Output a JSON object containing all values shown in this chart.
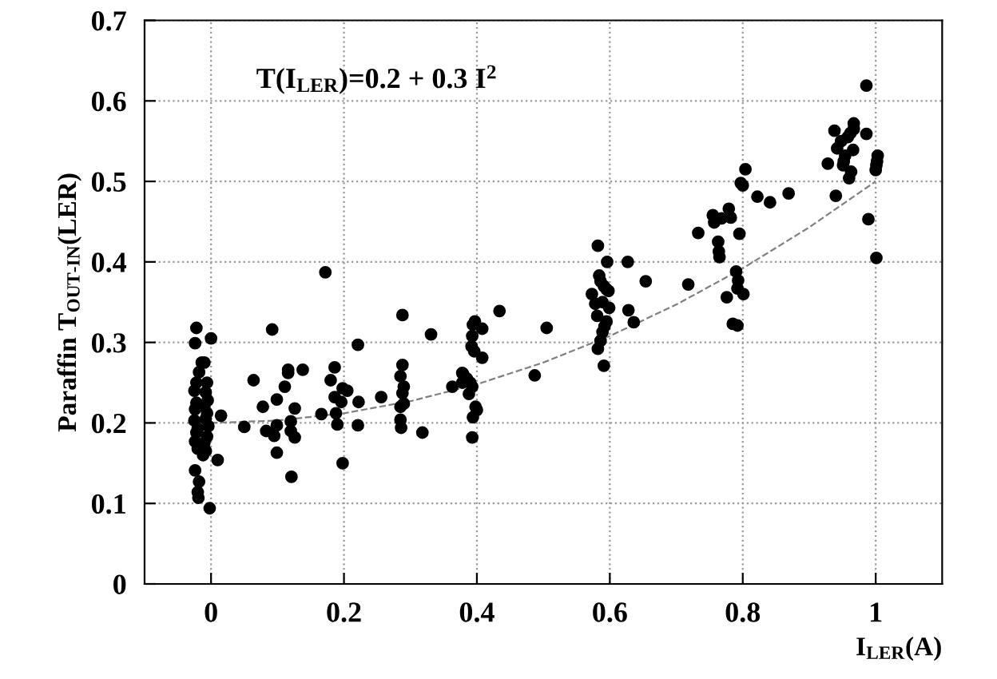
{
  "chart_data": {
    "type": "scatter",
    "xlabel": "I$_{LER}$(A)",
    "ylabel": "Paraffin T$_{OUT-IN}$(LER)",
    "annotations": [
      "T(I$_{LER}$)=0.2 + 0.3 I$^{2}$"
    ],
    "xlim": [
      -0.1,
      1.1
    ],
    "ylim": [
      0,
      0.7
    ],
    "xticks": [
      0,
      0.2,
      0.4,
      0.6,
      0.8,
      1
    ],
    "yticks": [
      0,
      0.1,
      0.2,
      0.3,
      0.4,
      0.5,
      0.6,
      0.7
    ],
    "grid": true,
    "legend": false,
    "marker": "circle",
    "series": [
      {
        "color": "#000000",
        "x": [
          -0.022,
          -0.024,
          0.0,
          -0.014,
          -0.01,
          -0.018,
          -0.025,
          -0.008,
          -0.005,
          -0.022,
          -0.01,
          -0.024,
          -0.006,
          -0.008,
          -0.025,
          -0.004,
          -0.02,
          -0.022,
          -0.006,
          -0.024,
          -0.01,
          -0.02,
          -0.008,
          -0.012,
          0.015,
          0.01,
          -0.024,
          -0.018,
          -0.02,
          -0.019,
          -0.002,
          -0.022,
          -0.006,
          0.05,
          0.064,
          0.078,
          0.083,
          0.092,
          0.099,
          0.099,
          0.095,
          0.099,
          0.111,
          0.116,
          0.116,
          0.126,
          0.12,
          0.12,
          0.126,
          0.121,
          0.138,
          0.172,
          0.166,
          0.186,
          0.18,
          0.186,
          0.198,
          0.205,
          0.196,
          0.188,
          0.19,
          0.198,
          0.221,
          0.222,
          0.221,
          0.256,
          0.288,
          0.288,
          0.285,
          0.29,
          0.288,
          0.29,
          0.285,
          0.285,
          0.286,
          0.318,
          0.331,
          0.363,
          0.378,
          0.378,
          0.379,
          0.385,
          0.39,
          0.393,
          0.388,
          0.398,
          0.4,
          0.394,
          0.393,
          0.393,
          0.392,
          0.396,
          0.397,
          0.394,
          0.408,
          0.408,
          0.434,
          0.487,
          0.505,
          0.582,
          0.596,
          0.584,
          0.586,
          0.591,
          0.595,
          0.598,
          0.573,
          0.578,
          0.589,
          0.599,
          0.581,
          0.595,
          0.592,
          0.589,
          0.586,
          0.582,
          0.591,
          0.627,
          0.654,
          0.628,
          0.636,
          0.718,
          0.733,
          0.755,
          0.757,
          0.768,
          0.782,
          0.779,
          0.763,
          0.764,
          0.765,
          0.795,
          0.79,
          0.793,
          0.792,
          0.801,
          0.776,
          0.785,
          0.792,
          0.804,
          0.797,
          0.8,
          0.822,
          0.841,
          0.869,
          0.986,
          0.938,
          0.967,
          0.967,
          0.962,
          0.958,
          0.948,
          0.942,
          0.966,
          0.954,
          0.952,
          0.951,
          0.928,
          0.986,
          0.963,
          0.96,
          1.003,
          1.002,
          1.001,
          1.0,
          0.94,
          0.989,
          1.001
        ],
        "values": [
          0.318,
          0.299,
          0.305,
          0.275,
          0.275,
          0.263,
          0.24,
          0.238,
          0.228,
          0.225,
          0.22,
          0.217,
          0.212,
          0.205,
          0.203,
          0.196,
          0.193,
          0.188,
          0.183,
          0.177,
          0.175,
          0.168,
          0.165,
          0.16,
          0.209,
          0.154,
          0.141,
          0.127,
          0.114,
          0.107,
          0.094,
          0.25,
          0.25,
          0.195,
          0.253,
          0.22,
          0.19,
          0.316,
          0.229,
          0.197,
          0.184,
          0.163,
          0.245,
          0.266,
          0.262,
          0.218,
          0.202,
          0.19,
          0.182,
          0.133,
          0.266,
          0.387,
          0.211,
          0.269,
          0.253,
          0.232,
          0.243,
          0.24,
          0.226,
          0.212,
          0.198,
          0.15,
          0.297,
          0.226,
          0.197,
          0.232,
          0.334,
          0.272,
          0.258,
          0.245,
          0.237,
          0.224,
          0.22,
          0.204,
          0.194,
          0.188,
          0.31,
          0.245,
          0.25,
          0.262,
          0.261,
          0.255,
          0.25,
          0.245,
          0.236,
          0.22,
          0.216,
          0.207,
          0.182,
          0.308,
          0.295,
          0.289,
          0.326,
          0.322,
          0.317,
          0.281,
          0.339,
          0.259,
          0.318,
          0.42,
          0.4,
          0.383,
          0.376,
          0.37,
          0.366,
          0.364,
          0.36,
          0.348,
          0.35,
          0.343,
          0.333,
          0.326,
          0.32,
          0.313,
          0.302,
          0.292,
          0.271,
          0.4,
          0.376,
          0.34,
          0.325,
          0.372,
          0.436,
          0.458,
          0.449,
          0.454,
          0.455,
          0.466,
          0.425,
          0.413,
          0.406,
          0.435,
          0.388,
          0.377,
          0.367,
          0.36,
          0.356,
          0.323,
          0.321,
          0.515,
          0.498,
          0.495,
          0.481,
          0.474,
          0.485,
          0.619,
          0.563,
          0.572,
          0.565,
          0.56,
          0.555,
          0.55,
          0.541,
          0.539,
          0.532,
          0.525,
          0.52,
          0.522,
          0.559,
          0.512,
          0.504,
          0.532,
          0.525,
          0.52,
          0.514,
          0.482,
          0.453,
          0.405
        ]
      },
      {
        "type": "line",
        "color": "#808080",
        "line_style": "dashed",
        "marker": "none",
        "x": [
          0,
          0.1,
          0.2,
          0.3,
          0.4,
          0.5,
          0.6,
          0.7,
          0.8,
          0.9,
          1
        ],
        "values": [
          0.2,
          0.203,
          0.212,
          0.227,
          0.248,
          0.275,
          0.308,
          0.347,
          0.392,
          0.443,
          0.5
        ]
      }
    ]
  }
}
